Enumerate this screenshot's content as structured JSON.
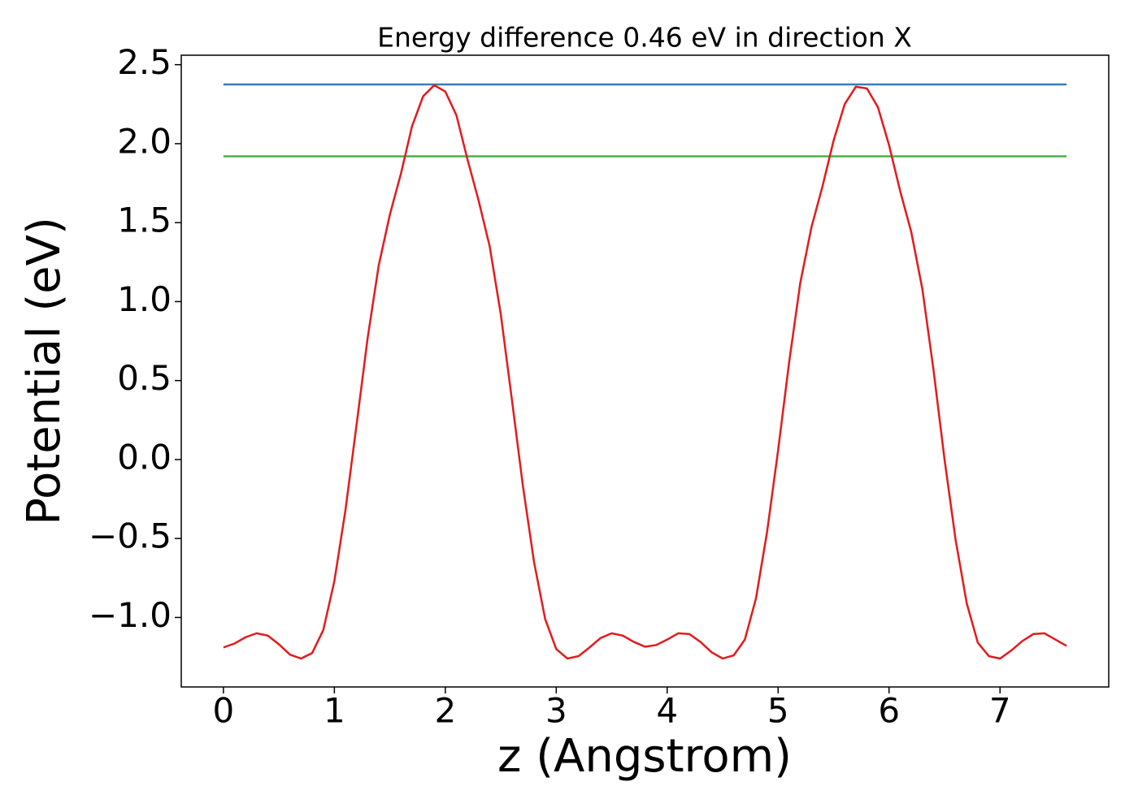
{
  "chart_data": {
    "type": "line",
    "title": "Energy difference 0.46 eV in direction X",
    "xlabel": "z (Angstrom)",
    "ylabel": "Potential (eV)",
    "xlim": [
      -0.38,
      7.98
    ],
    "ylim": [
      -1.44,
      2.56
    ],
    "xticks": [
      0,
      1,
      2,
      3,
      4,
      5,
      6,
      7
    ],
    "yticks": [
      {
        "value": -1.0,
        "label": "−1.0"
      },
      {
        "value": -0.5,
        "label": "−0.5"
      },
      {
        "value": 0.0,
        "label": "0.0"
      },
      0.5,
      {
        "value": 1.0,
        "label": "1.0"
      },
      1.5,
      {
        "value": 2.0,
        "label": "2.0"
      },
      2.5
    ],
    "grid": false,
    "series": [
      {
        "color": "#377eb8",
        "x": [
          0,
          7.6
        ],
        "values": [
          2.375,
          2.375
        ]
      },
      {
        "color": "#4daf4a",
        "x": [
          0,
          7.6
        ],
        "values": [
          1.92,
          1.92
        ]
      },
      {
        "color": "#e41a1c",
        "x": [
          0.0,
          0.1,
          0.2,
          0.3,
          0.4,
          0.5,
          0.6,
          0.7,
          0.8,
          0.9,
          1.0,
          1.1,
          1.2,
          1.3,
          1.4,
          1.5,
          1.6,
          1.7,
          1.8,
          1.9,
          2.0,
          2.1,
          2.2,
          2.3,
          2.4,
          2.5,
          2.6,
          2.7,
          2.8,
          2.9,
          3.0,
          3.1,
          3.2,
          3.3,
          3.4,
          3.5,
          3.6,
          3.7,
          3.8,
          3.9,
          4.0,
          4.1,
          4.2,
          4.3,
          4.4,
          4.5,
          4.6,
          4.7,
          4.8,
          4.9,
          5.0,
          5.1,
          5.2,
          5.3,
          5.4,
          5.5,
          5.6,
          5.7,
          5.8,
          5.9,
          6.0,
          6.1,
          6.2,
          6.3,
          6.4,
          6.5,
          6.6,
          6.7,
          6.8,
          6.9,
          7.0,
          7.1,
          7.2,
          7.3,
          7.4,
          7.5,
          7.6
        ],
        "values": [
          -1.19,
          -1.165,
          -1.125,
          -1.1,
          -1.115,
          -1.17,
          -1.235,
          -1.26,
          -1.225,
          -1.08,
          -0.77,
          -0.32,
          0.22,
          0.77,
          1.23,
          1.55,
          1.81,
          2.11,
          2.3,
          2.37,
          2.33,
          2.18,
          1.9,
          1.64,
          1.35,
          0.92,
          0.38,
          -0.17,
          -0.65,
          -1.01,
          -1.2,
          -1.26,
          -1.245,
          -1.19,
          -1.13,
          -1.1,
          -1.115,
          -1.155,
          -1.185,
          -1.175,
          -1.14,
          -1.1,
          -1.105,
          -1.155,
          -1.22,
          -1.26,
          -1.24,
          -1.14,
          -0.88,
          -0.46,
          0.06,
          0.62,
          1.12,
          1.47,
          1.73,
          2.02,
          2.25,
          2.36,
          2.35,
          2.23,
          1.99,
          1.7,
          1.44,
          1.08,
          0.57,
          0.0,
          -0.51,
          -0.91,
          -1.16,
          -1.245,
          -1.26,
          -1.21,
          -1.15,
          -1.105,
          -1.1,
          -1.14,
          -1.18
        ]
      }
    ]
  }
}
